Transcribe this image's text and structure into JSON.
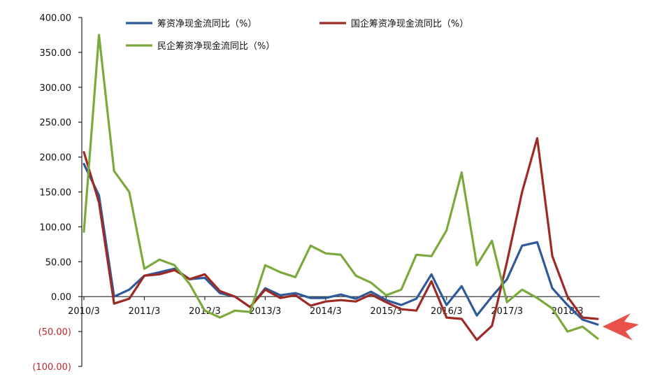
{
  "chart_data": {
    "type": "line",
    "title": "",
    "xlabel": "",
    "ylabel": "",
    "ylim": [
      -100,
      400
    ],
    "y_ticks": [
      {
        "value": 400,
        "label": "400.00",
        "negative": false
      },
      {
        "value": 350,
        "label": "350.00",
        "negative": false
      },
      {
        "value": 300,
        "label": "300.00",
        "negative": false
      },
      {
        "value": 250,
        "label": "250.00",
        "negative": false
      },
      {
        "value": 200,
        "label": "200.00",
        "negative": false
      },
      {
        "value": 150,
        "label": "150.00",
        "negative": false
      },
      {
        "value": 100,
        "label": "100.00",
        "negative": false
      },
      {
        "value": 50,
        "label": "50.00",
        "negative": false
      },
      {
        "value": 0,
        "label": "0.00",
        "negative": false
      },
      {
        "value": -50,
        "label": "(50.00)",
        "negative": true
      },
      {
        "value": -100,
        "label": "(100.00)",
        "negative": true
      }
    ],
    "x": [
      "2010/3",
      "2010/6",
      "2010/9",
      "2010/12",
      "2011/3",
      "2011/6",
      "2011/9",
      "2011/12",
      "2012/3",
      "2012/6",
      "2012/9",
      "2012/12",
      "2013/3",
      "2013/6",
      "2013/9",
      "2013/12",
      "2014/3",
      "2014/6",
      "2014/9",
      "2014/12",
      "2015/3",
      "2015/6",
      "2015/9",
      "2015/12",
      "2016/3",
      "2016/6",
      "2016/9",
      "2016/12",
      "2017/3",
      "2017/6",
      "2017/9",
      "2017/12",
      "2018/3",
      "2018/6",
      "2018/9"
    ],
    "x_tick_labels": [
      "2010/3",
      "2011/3",
      "2012/3",
      "2013/3",
      "2014/3",
      "2015/3",
      "2016/3",
      "2017/3",
      "2018/3"
    ],
    "x_tick_every": 4,
    "legend_position": "top",
    "series": [
      {
        "name": "筹资净现金流同比（%）",
        "color": "#2e5a9c",
        "values": [
          190,
          145,
          0,
          10,
          30,
          35,
          40,
          25,
          27,
          5,
          0,
          -15,
          12,
          2,
          5,
          -2,
          -2,
          3,
          -3,
          7,
          -5,
          -12,
          -3,
          32,
          -12,
          15,
          -27,
          0,
          25,
          73,
          78,
          12,
          -12,
          -33,
          -40
        ]
      },
      {
        "name": "国企筹资净现金流同比（%）",
        "color": "#9e2a25",
        "values": [
          207,
          135,
          -10,
          -3,
          30,
          32,
          38,
          25,
          32,
          8,
          0,
          -15,
          10,
          -2,
          2,
          -13,
          -7,
          -5,
          -7,
          3,
          -8,
          -18,
          -20,
          22,
          -30,
          -32,
          -62,
          -42,
          50,
          150,
          227,
          58,
          0,
          -30,
          -32
        ]
      },
      {
        "name": "民企筹资净现金流同比（%）",
        "color": "#7aaa3c",
        "values": [
          93,
          375,
          180,
          150,
          40,
          53,
          45,
          18,
          -20,
          -30,
          -20,
          -22,
          45,
          35,
          28,
          73,
          62,
          60,
          30,
          20,
          2,
          10,
          60,
          58,
          95,
          178,
          45,
          80,
          -8,
          10,
          -2,
          -17,
          -50,
          -43,
          -60
        ]
      }
    ]
  }
}
